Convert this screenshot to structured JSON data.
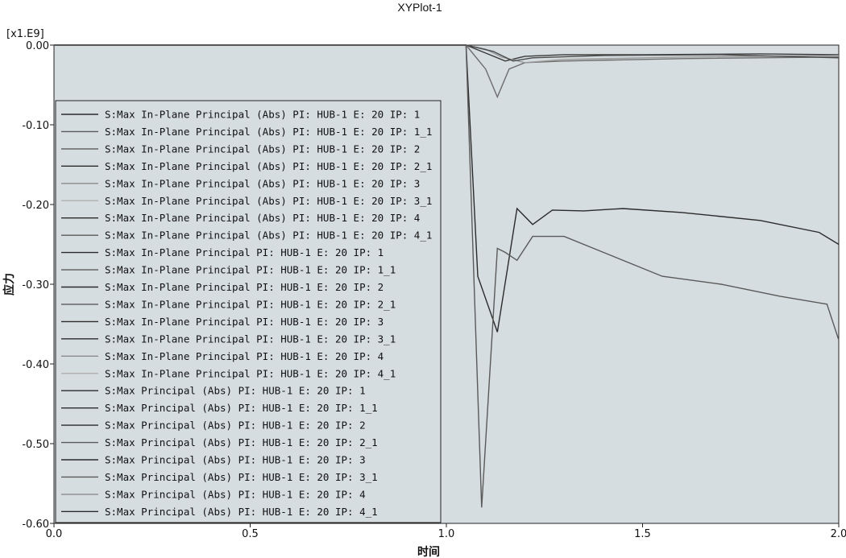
{
  "chart_data": {
    "type": "line",
    "title": "XYPlot-1",
    "xlabel": "时间",
    "ylabel": "应力",
    "y_multiplier": "[x1.E9]",
    "xlim": [
      0.0,
      2.0
    ],
    "ylim": [
      -0.6,
      0.0
    ],
    "x_ticks": [
      "0.0",
      "0.5",
      "1.0",
      "1.5",
      "2.0"
    ],
    "y_ticks": [
      "0.00",
      "-0.10",
      "-0.20",
      "-0.30",
      "-0.40",
      "-0.50",
      "-0.60"
    ],
    "grid": false,
    "legend_position": "left",
    "colors": {
      "plot_bg": "#d5dde1",
      "legend_bg": "#d5dde1",
      "dark": "#2b2b2b",
      "medium": "#5a5a5a",
      "light": "#8c8c8c",
      "pale": "#b4b4b4"
    },
    "legend": [
      "S:Max In-Plane Principal (Abs) PI: HUB-1 E: 20 IP: 1",
      "S:Max In-Plane Principal (Abs) PI: HUB-1 E: 20 IP: 1_1",
      "S:Max In-Plane Principal (Abs) PI: HUB-1 E: 20 IP: 2",
      "S:Max In-Plane Principal (Abs) PI: HUB-1 E: 20 IP: 2_1",
      "S:Max In-Plane Principal (Abs) PI: HUB-1 E: 20 IP: 3",
      "S:Max In-Plane Principal (Abs) PI: HUB-1 E: 20 IP: 3_1",
      "S:Max In-Plane Principal (Abs) PI: HUB-1 E: 20 IP: 4",
      "S:Max In-Plane Principal (Abs) PI: HUB-1 E: 20 IP: 4_1",
      "S:Max In-Plane Principal PI: HUB-1 E: 20 IP: 1",
      "S:Max In-Plane Principal PI: HUB-1 E: 20 IP: 1_1",
      "S:Max In-Plane Principal PI: HUB-1 E: 20 IP: 2",
      "S:Max In-Plane Principal PI: HUB-1 E: 20 IP: 2_1",
      "S:Max In-Plane Principal PI: HUB-1 E: 20 IP: 3",
      "S:Max In-Plane Principal PI: HUB-1 E: 20 IP: 3_1",
      "S:Max In-Plane Principal PI: HUB-1 E: 20 IP: 4",
      "S:Max In-Plane Principal PI: HUB-1 E: 20 IP: 4_1",
      "S:Max Principal (Abs) PI: HUB-1 E: 20 IP: 1",
      "S:Max Principal (Abs) PI: HUB-1 E: 20 IP: 1_1",
      "S:Max Principal (Abs) PI: HUB-1 E: 20 IP: 2",
      "S:Max Principal (Abs) PI: HUB-1 E: 20 IP: 2_1",
      "S:Max Principal (Abs) PI: HUB-1 E: 20 IP: 3",
      "S:Max Principal (Abs) PI: HUB-1 E: 20 IP: 3_1",
      "S:Max Principal (Abs) PI: HUB-1 E: 20 IP: 4",
      "S:Max Principal (Abs) PI: HUB-1 E: 20 IP: 4_1"
    ],
    "legend_line_colors": [
      "#2b2b2b",
      "#5a5a5a",
      "#5a5a5a",
      "#2b2b2b",
      "#8c8c8c",
      "#b4b4b4",
      "#2b2b2b",
      "#5a5a5a",
      "#2b2b2b",
      "#5a5a5a",
      "#2b2b2b",
      "#5a5a5a",
      "#2b2b2b",
      "#2b2b2b",
      "#8c8c8c",
      "#b4b4b4",
      "#2b2b2b",
      "#2b2b2b",
      "#2b2b2b",
      "#5a5a5a",
      "#2b2b2b",
      "#5a5a5a",
      "#8c8c8c",
      "#2b2b2b"
    ],
    "series": [
      {
        "color": "#2b2b2b",
        "x": [
          0.0,
          1.05,
          1.08,
          1.13,
          1.18,
          1.22,
          1.27,
          1.35,
          1.45,
          1.6,
          1.8,
          1.95,
          2.0
        ],
        "y": [
          0.0,
          0.0,
          -0.29,
          -0.36,
          -0.205,
          -0.225,
          -0.207,
          -0.208,
          -0.205,
          -0.21,
          -0.22,
          -0.235,
          -0.25
        ]
      },
      {
        "color": "#5a5a5a",
        "x": [
          0.0,
          1.05,
          1.09,
          1.13,
          1.15,
          1.18,
          1.22,
          1.3,
          1.4,
          1.55,
          1.7,
          1.85,
          1.97,
          2.0
        ],
        "y": [
          0.0,
          0.0,
          -0.58,
          -0.255,
          -0.26,
          -0.27,
          -0.24,
          -0.24,
          -0.26,
          -0.29,
          -0.3,
          -0.315,
          -0.325,
          -0.37
        ]
      },
      {
        "color": "#3a3a3a",
        "x": [
          0.0,
          1.05,
          1.1,
          1.15,
          1.2,
          1.3,
          1.5,
          1.8,
          2.0
        ],
        "y": [
          0.0,
          0.0,
          -0.01,
          -0.02,
          -0.014,
          -0.012,
          -0.012,
          -0.011,
          -0.012
        ]
      },
      {
        "color": "#6e6e6e",
        "x": [
          0.0,
          1.05,
          1.1,
          1.13,
          1.16,
          1.2,
          1.3,
          1.6,
          2.0
        ],
        "y": [
          0.0,
          0.0,
          -0.03,
          -0.065,
          -0.03,
          -0.022,
          -0.02,
          -0.017,
          -0.015
        ]
      },
      {
        "color": "#9a9a9a",
        "x": [
          0.0,
          1.05,
          1.1,
          1.14,
          1.2,
          1.3,
          1.6,
          2.0
        ],
        "y": [
          0.0,
          0.0,
          -0.005,
          -0.015,
          -0.022,
          -0.018,
          -0.015,
          -0.013
        ]
      },
      {
        "color": "#4a4a4a",
        "x": [
          0.0,
          1.05,
          1.12,
          1.17,
          1.22,
          1.4,
          1.7,
          2.0
        ],
        "y": [
          0.0,
          0.0,
          -0.008,
          -0.02,
          -0.016,
          -0.013,
          -0.012,
          -0.016
        ]
      }
    ]
  }
}
